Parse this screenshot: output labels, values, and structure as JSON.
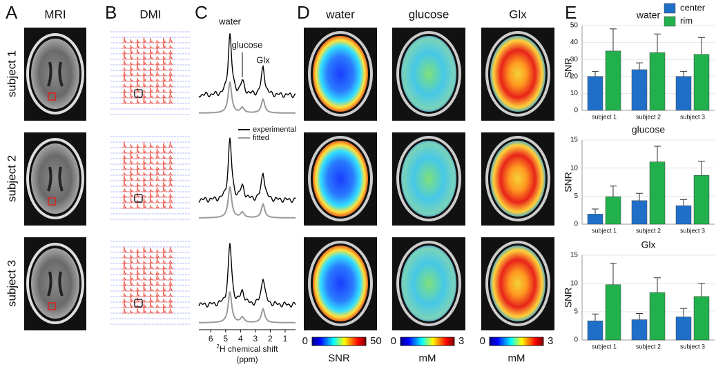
{
  "panel_labels": [
    "A",
    "B",
    "C",
    "D",
    "E"
  ],
  "column_titles": {
    "mri": "MRI",
    "dmi": "DMI",
    "maps": [
      "water",
      "glucose",
      "Glx"
    ]
  },
  "row_labels": [
    "subject 1",
    "subject 2",
    "subject 3"
  ],
  "colorbars": [
    {
      "ticks": [
        0,
        50
      ],
      "label": "SNR"
    },
    {
      "ticks": [
        0,
        3
      ],
      "label": "mM"
    },
    {
      "ticks": [
        0,
        3
      ],
      "label": "mM"
    }
  ],
  "chart_data": [
    {
      "type": "line",
      "xlabel_superscript": "2",
      "xlabel": "H chemical shift",
      "xlabel_unit": "(ppm)",
      "xlim": [
        6.8,
        0.3
      ],
      "xticks": [
        6,
        5,
        4,
        3,
        2,
        1
      ],
      "annotations": [
        "water",
        "glucose",
        "Glx"
      ],
      "series": [
        {
          "name": "experimental",
          "color": "#000000"
        },
        {
          "name": "fitted",
          "color": "#999999"
        }
      ]
    },
    {
      "type": "bar",
      "title": "water",
      "ylabel": "SNR",
      "categories": [
        "subject 1",
        "subject 2",
        "subject 3"
      ],
      "ylim": [
        0,
        50
      ],
      "yticks": [
        0,
        10,
        20,
        30,
        40,
        50
      ],
      "grid": true,
      "legend": "top-right",
      "series": [
        {
          "name": "center",
          "color": "#1f6fc9",
          "values": [
            20,
            24,
            20
          ],
          "errors": [
            3,
            4,
            3
          ]
        },
        {
          "name": "rim",
          "color": "#22b04c",
          "values": [
            35,
            34,
            33
          ],
          "errors": [
            13,
            11,
            10
          ]
        }
      ]
    },
    {
      "type": "bar",
      "title": "glucose",
      "ylabel": "SNR",
      "categories": [
        "subject 1",
        "subject 2",
        "subject 3"
      ],
      "ylim": [
        0,
        15
      ],
      "yticks": [
        0,
        5,
        10,
        15
      ],
      "grid": true,
      "series": [
        {
          "color": "#1f6fc9",
          "values": [
            1.8,
            4.2,
            3.3
          ],
          "errors": [
            0.9,
            1.3,
            1.1
          ]
        },
        {
          "color": "#22b04c",
          "values": [
            4.9,
            11.1,
            8.7
          ],
          "errors": [
            1.9,
            2.8,
            2.5
          ]
        }
      ]
    },
    {
      "type": "bar",
      "title": "Glx",
      "ylabel": "SNR",
      "categories": [
        "subject 1",
        "subject 2",
        "subject 3"
      ],
      "ylim": [
        0,
        15
      ],
      "yticks": [
        0,
        5,
        10,
        15
      ],
      "grid": true,
      "series": [
        {
          "color": "#1f6fc9",
          "values": [
            3.4,
            3.6,
            4.1
          ],
          "errors": [
            1.2,
            1.1,
            1.5
          ]
        },
        {
          "color": "#22b04c",
          "values": [
            9.8,
            8.4,
            7.7
          ],
          "errors": [
            3.8,
            2.6,
            2.3
          ]
        }
      ]
    }
  ]
}
